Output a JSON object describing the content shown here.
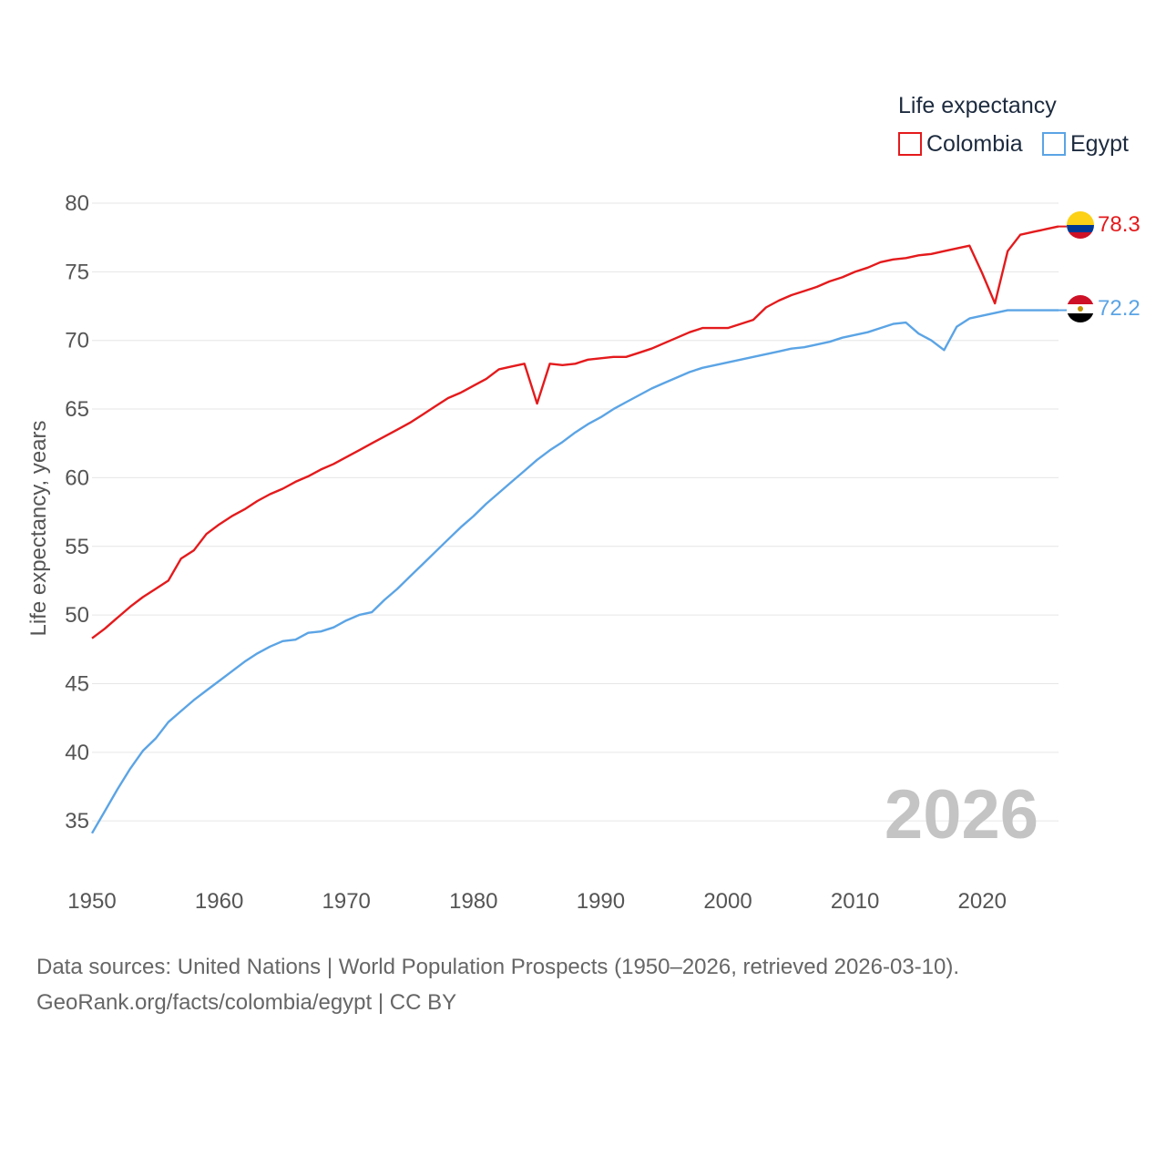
{
  "chart_data": {
    "type": "line",
    "legend_title": "Life expectancy",
    "ylabel": "Life expectancy, years",
    "ylim": [
      30.5,
      80
    ],
    "yticks": [
      35,
      40,
      45,
      50,
      55,
      60,
      65,
      70,
      75,
      80
    ],
    "xlim": [
      1950,
      2026
    ],
    "xticks": [
      1950,
      1960,
      1970,
      1980,
      1990,
      2000,
      2010,
      2020
    ],
    "current_year": "2026",
    "x": [
      1950,
      1951,
      1952,
      1953,
      1954,
      1955,
      1956,
      1957,
      1958,
      1959,
      1960,
      1961,
      1962,
      1963,
      1964,
      1965,
      1966,
      1967,
      1968,
      1969,
      1970,
      1971,
      1972,
      1973,
      1974,
      1975,
      1976,
      1977,
      1978,
      1979,
      1980,
      1981,
      1982,
      1983,
      1984,
      1985,
      1986,
      1987,
      1988,
      1989,
      1990,
      1991,
      1992,
      1993,
      1994,
      1995,
      1996,
      1997,
      1998,
      1999,
      2000,
      2001,
      2002,
      2003,
      2004,
      2005,
      2006,
      2007,
      2008,
      2009,
      2010,
      2011,
      2012,
      2013,
      2014,
      2015,
      2016,
      2017,
      2018,
      2019,
      2020,
      2021,
      2022,
      2023,
      2024,
      2025,
      2026
    ],
    "series": [
      {
        "name": "Colombia",
        "color": "#e41a1c",
        "end_label": "78.3",
        "flag": "colombia-flag-icon",
        "values": [
          48.3,
          49.0,
          49.8,
          50.6,
          51.3,
          51.9,
          52.5,
          54.1,
          54.7,
          55.9,
          56.6,
          57.2,
          57.7,
          58.3,
          58.8,
          59.2,
          59.7,
          60.1,
          60.6,
          61.0,
          61.5,
          62.0,
          62.5,
          63.0,
          63.5,
          64.0,
          64.6,
          65.2,
          65.8,
          66.2,
          66.7,
          67.2,
          67.9,
          68.1,
          68.3,
          65.4,
          68.3,
          68.2,
          68.3,
          68.6,
          68.7,
          68.8,
          68.8,
          69.1,
          69.4,
          69.8,
          70.2,
          70.6,
          70.9,
          70.9,
          70.9,
          71.2,
          71.5,
          72.4,
          72.9,
          73.3,
          73.6,
          73.9,
          74.3,
          74.6,
          75.0,
          75.3,
          75.7,
          75.9,
          76.0,
          76.2,
          76.3,
          76.5,
          76.7,
          76.9,
          74.9,
          72.7,
          76.5,
          77.7,
          77.9,
          78.1,
          78.3
        ]
      },
      {
        "name": "Egypt",
        "color": "#5ba4e5",
        "end_label": "72.2",
        "flag": "egypt-flag-icon",
        "values": [
          34.1,
          35.7,
          37.3,
          38.8,
          40.1,
          41.0,
          42.2,
          43.0,
          43.8,
          44.5,
          45.2,
          45.9,
          46.6,
          47.2,
          47.7,
          48.1,
          48.2,
          48.7,
          48.8,
          49.1,
          49.6,
          50.0,
          50.2,
          51.1,
          51.9,
          52.8,
          53.7,
          54.6,
          55.5,
          56.4,
          57.2,
          58.1,
          58.9,
          59.7,
          60.5,
          61.3,
          62.0,
          62.6,
          63.3,
          63.9,
          64.4,
          65.0,
          65.5,
          66.0,
          66.5,
          66.9,
          67.3,
          67.7,
          68.0,
          68.2,
          68.4,
          68.6,
          68.8,
          69.0,
          69.2,
          69.4,
          69.5,
          69.7,
          69.9,
          70.2,
          70.4,
          70.6,
          70.9,
          71.2,
          71.3,
          70.5,
          70.0,
          69.3,
          71.0,
          71.6,
          71.8,
          72.0,
          72.2,
          72.2,
          72.2,
          72.2,
          72.2
        ]
      }
    ]
  },
  "footer": {
    "source_line": "Data sources: United Nations | World Population Prospects (1950–2026, retrieved 2026-03-10).",
    "credit_line": "GeoRank.org/facts/colombia/egypt | CC BY"
  }
}
